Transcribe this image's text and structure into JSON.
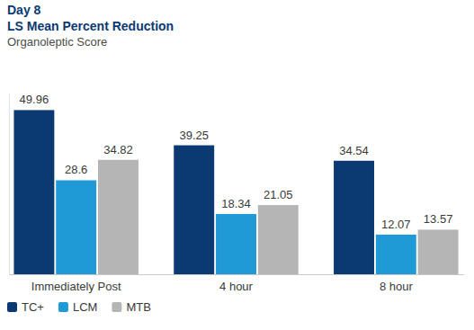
{
  "chart_data": {
    "type": "bar",
    "title": "Day 8",
    "subtitle": "LS Mean Percent Reduction",
    "ylabel": "Organoleptic Score",
    "categories": [
      "Immediately Post",
      "4 hour",
      "8 hour"
    ],
    "series": [
      {
        "name": "TC+",
        "color": "#0b3a72",
        "values": [
          49.96,
          39.25,
          34.54
        ]
      },
      {
        "name": "LCM",
        "color": "#1f9ad7",
        "values": [
          28.6,
          18.34,
          12.07
        ]
      },
      {
        "name": "MTB",
        "color": "#b5b5b5",
        "values": [
          34.82,
          21.05,
          13.57
        ]
      }
    ],
    "ylim": [
      0,
      55
    ],
    "grid": false,
    "data_labels": true,
    "tick_labels": "x",
    "legend": "bottom-left"
  }
}
